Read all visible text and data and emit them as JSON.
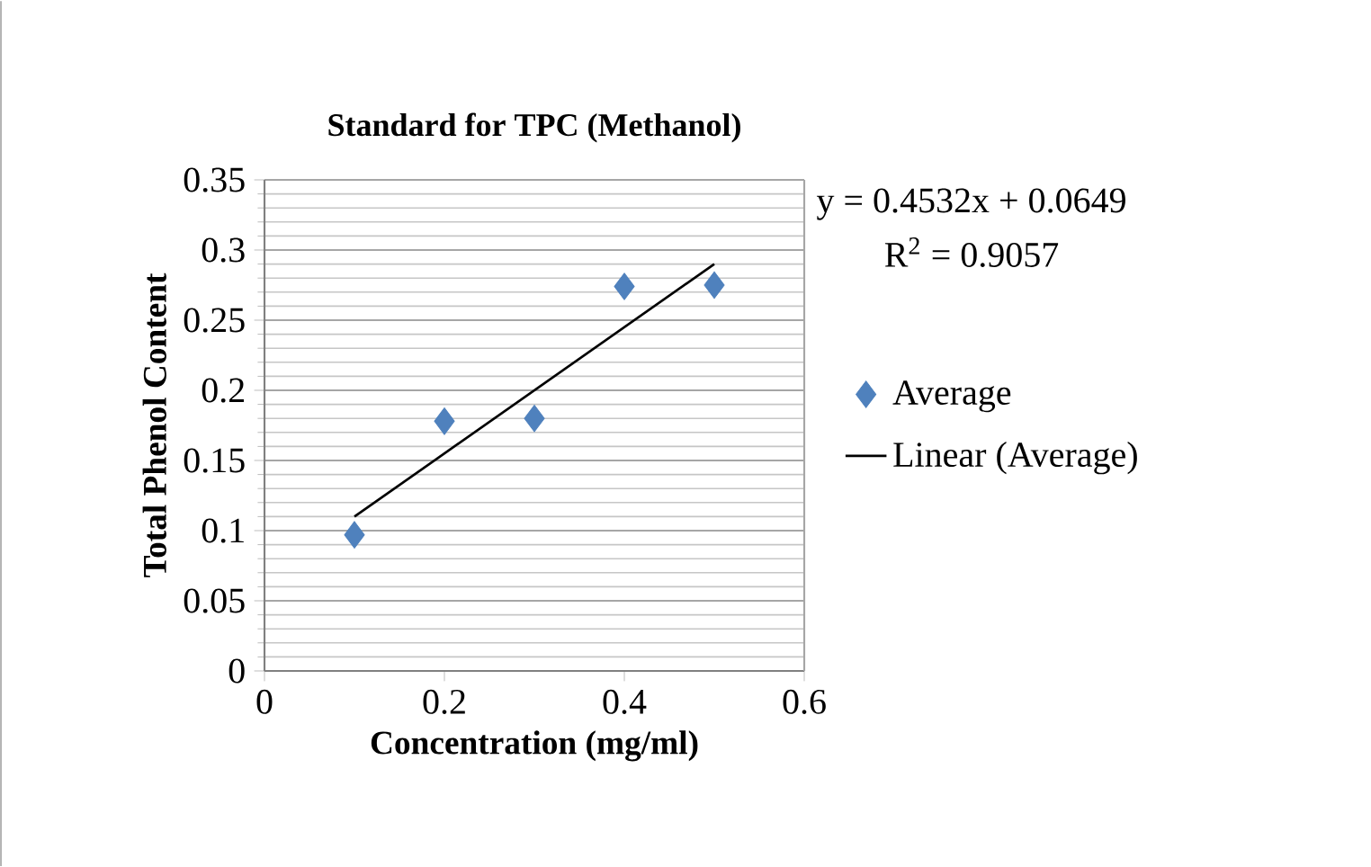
{
  "chart_data": {
    "type": "scatter",
    "title": "Standard for TPC (Methanol)",
    "xlabel": "Concentration (mg/ml)",
    "ylabel": "Total Phenol Content",
    "annotations": [
      "y = 0.4532x + 0.0649",
      "R$^{2}$ = 0.9057"
    ],
    "series": [
      {
        "name": "Average",
        "color": "#4f81bd",
        "marker": "diamond",
        "x": [
          0.1,
          0.2,
          0.3,
          0.4,
          0.5
        ],
        "values": [
          0.097,
          0.178,
          0.18,
          0.274,
          0.275
        ]
      },
      {
        "name": "Linear (Average)",
        "type": "line",
        "color": "#000000",
        "marker": "none",
        "line_style": "solid",
        "x": [
          0.1,
          0.5
        ],
        "values": [
          0.11,
          0.29
        ]
      }
    ],
    "xlim": [
      0,
      0.6
    ],
    "xticks": [
      0,
      0.2,
      0.4,
      0.6
    ],
    "ylim": [
      0,
      0.35
    ],
    "yticks": [
      0,
      0.05,
      0.1,
      0.15,
      0.2,
      0.25,
      0.3,
      0.35
    ],
    "grid": "y",
    "legend": "right"
  }
}
